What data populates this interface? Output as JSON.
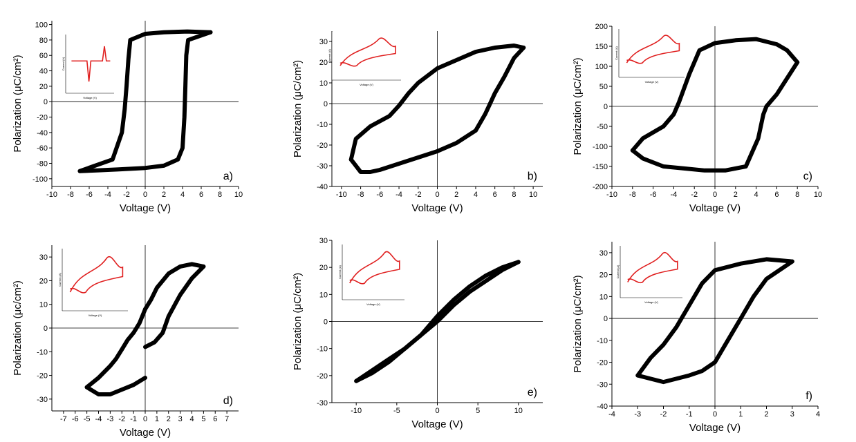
{
  "figure": {
    "background": "#ffffff",
    "loop_color": "#000000",
    "inset_color": "#e02020"
  },
  "chart_data": [
    {
      "id": "a",
      "type": "line",
      "panel_label": "a)",
      "xlabel": "Voltage (V)",
      "ylabel": "Polarization (μC/cm²)",
      "xlim": [
        -10,
        10
      ],
      "ylim": [
        -110,
        105
      ],
      "xticks": [
        -10,
        -8,
        -6,
        -4,
        -2,
        0,
        2,
        4,
        6,
        8,
        10
      ],
      "yticks": [
        -100,
        -80,
        -60,
        -40,
        -20,
        0,
        20,
        40,
        60,
        80,
        100
      ],
      "grid": false,
      "series": [
        {
          "x": [
            7,
            4.6,
            4.4,
            4.3,
            4.2,
            4.0,
            3.5,
            2,
            0,
            -3,
            -5,
            -7
          ],
          "y": [
            90,
            80,
            60,
            20,
            -20,
            -60,
            -75,
            -83,
            -86,
            -88,
            -89,
            -90
          ]
        },
        {
          "x": [
            -7,
            -3.5,
            -2.5,
            -2.2,
            -2.0,
            -1.8,
            -1.6,
            0,
            2,
            4.5,
            7
          ],
          "y": [
            -90,
            -75,
            -40,
            -10,
            20,
            55,
            80,
            88,
            90,
            91,
            90
          ]
        }
      ],
      "inset": {
        "type": "line",
        "ylabel": "Current (A)",
        "xlabel": "Voltage (V)"
      }
    },
    {
      "id": "b",
      "type": "line",
      "panel_label": "b)",
      "xlabel": "Voltage (V)",
      "ylabel": "Polarization (μC/cm²)",
      "xlim": [
        -11,
        11
      ],
      "ylim": [
        -40,
        35
      ],
      "xticks": [
        -10,
        -8,
        -6,
        -4,
        -2,
        0,
        2,
        4,
        6,
        8,
        10
      ],
      "yticks": [
        -40,
        -30,
        -20,
        -10,
        0,
        10,
        20,
        30
      ],
      "grid": false,
      "series": [
        {
          "x": [
            9,
            8,
            7,
            6,
            5.5,
            5,
            4,
            2,
            0,
            -2,
            -4,
            -6,
            -7,
            -8,
            -9
          ],
          "y": [
            27,
            22,
            13,
            5,
            0,
            -5,
            -13,
            -19,
            -23,
            -26,
            -29,
            -32,
            -33,
            -33,
            -27
          ]
        },
        {
          "x": [
            -9,
            -8.5,
            -7,
            -5,
            -4,
            -3,
            -2,
            0,
            2,
            4,
            6,
            8,
            9
          ],
          "y": [
            -27,
            -17,
            -11,
            -6,
            -1,
            5,
            10,
            17,
            21,
            25,
            27,
            28,
            27
          ]
        }
      ],
      "inset": {
        "type": "line",
        "ylabel": "Current (A)",
        "xlabel": "Voltage (V)"
      }
    },
    {
      "id": "c",
      "type": "line",
      "panel_label": "c)",
      "xlabel": "Voltage (V)",
      "ylabel": "Polarization (μC/cm²)",
      "xlim": [
        -10,
        10
      ],
      "ylim": [
        -200,
        200
      ],
      "xticks": [
        -10,
        -8,
        -6,
        -4,
        -2,
        0,
        2,
        4,
        6,
        8,
        10
      ],
      "yticks": [
        -200,
        -150,
        -100,
        -50,
        0,
        50,
        100,
        150,
        200
      ],
      "grid": false,
      "series": [
        {
          "x": [
            8,
            7,
            6,
            5,
            4.7,
            4.2,
            3,
            1,
            -1,
            -3,
            -5,
            -7,
            -8
          ],
          "y": [
            110,
            70,
            30,
            0,
            -20,
            -80,
            -150,
            -160,
            -160,
            -155,
            -150,
            -130,
            -110
          ]
        },
        {
          "x": [
            -8,
            -7,
            -5,
            -4,
            -3.5,
            -2.5,
            -1.5,
            0,
            2,
            4,
            6,
            7,
            8
          ],
          "y": [
            -110,
            -80,
            -50,
            -20,
            10,
            80,
            140,
            158,
            165,
            168,
            155,
            140,
            110
          ]
        }
      ],
      "inset": {
        "type": "line",
        "ylabel": "Current (A)",
        "xlabel": "Voltage (V)"
      }
    },
    {
      "id": "d",
      "type": "line",
      "panel_label": "d)",
      "xlabel": "Voltage (V)",
      "ylabel": "Polarization (μc/cm²)",
      "xlim": [
        -8,
        8
      ],
      "ylim": [
        -35,
        35
      ],
      "xticks": [
        -7,
        -6,
        -5,
        -4,
        -3,
        -2,
        -1,
        0,
        1,
        2,
        3,
        4,
        5,
        6,
        7
      ],
      "yticks": [
        -30,
        -20,
        -10,
        0,
        10,
        20,
        30
      ],
      "grid": false,
      "series": [
        {
          "x": [
            0,
            -0.5,
            -1,
            -1.5,
            -2,
            -2.5,
            -3,
            -4,
            -5
          ],
          "y": [
            8,
            2,
            -2,
            -5,
            -9,
            -13,
            -16,
            -21,
            -25
          ]
        },
        {
          "x": [
            -5,
            -4,
            -3,
            -2,
            -1,
            0
          ],
          "y": [
            -25,
            -28,
            -28,
            -26,
            -24,
            -21
          ]
        },
        {
          "x": [
            0,
            0.8,
            1.5,
            2,
            3,
            4,
            5
          ],
          "y": [
            -8,
            -6,
            -2,
            5,
            14,
            21,
            26
          ]
        },
        {
          "x": [
            5,
            4,
            3,
            2,
            1,
            0.5,
            0
          ],
          "y": [
            26,
            27,
            26,
            23,
            17,
            12,
            8
          ]
        }
      ],
      "inset": {
        "type": "line",
        "ylabel": "Current (A)",
        "xlabel": "Voltage (V)"
      }
    },
    {
      "id": "e",
      "type": "line",
      "panel_label": "e)",
      "xlabel": "Voltage (V)",
      "ylabel": "Polarization (μC/cm²)",
      "xlim": [
        -13,
        13
      ],
      "ylim": [
        -30,
        30
      ],
      "xticks": [
        -10,
        -5,
        0,
        5,
        10
      ],
      "yticks": [
        -30,
        -20,
        -10,
        0,
        10,
        20,
        30
      ],
      "grid": false,
      "series": [
        {
          "x": [
            10,
            8,
            6,
            4,
            2,
            0,
            -2,
            -4,
            -6,
            -8,
            -10
          ],
          "y": [
            22,
            19,
            15,
            11,
            6,
            0,
            -5,
            -10,
            -14,
            -18,
            -22
          ]
        },
        {
          "x": [
            -10,
            -8,
            -6,
            -4,
            -2,
            0,
            2,
            4,
            6,
            8,
            10
          ],
          "y": [
            -22,
            -19,
            -15,
            -10,
            -5,
            2,
            8,
            13,
            17,
            20,
            22
          ]
        }
      ],
      "inset": {
        "type": "line",
        "ylabel": "Current (A)",
        "xlabel": "Voltage (V)"
      }
    },
    {
      "id": "f",
      "type": "line",
      "panel_label": "f)",
      "xlabel": "Voltage (V)",
      "ylabel": "Polarization (μC/cm²)",
      "xlim": [
        -4,
        4
      ],
      "ylim": [
        -40,
        35
      ],
      "xticks": [
        -4,
        -3,
        -2,
        -1,
        0,
        1,
        2,
        3,
        4
      ],
      "yticks": [
        -40,
        -30,
        -20,
        -10,
        0,
        10,
        20,
        30
      ],
      "grid": false,
      "series": [
        {
          "x": [
            3,
            2,
            1.5,
            1,
            0.5,
            0,
            -0.5,
            -1,
            -2,
            -3
          ],
          "y": [
            26,
            18,
            10,
            0,
            -10,
            -20,
            -24,
            -26,
            -29,
            -26
          ]
        },
        {
          "x": [
            -3,
            -2.5,
            -2,
            -1.5,
            -1,
            -0.5,
            0,
            1,
            2,
            3
          ],
          "y": [
            -26,
            -18,
            -12,
            -4,
            6,
            16,
            22,
            25,
            27,
            26
          ]
        }
      ],
      "inset": {
        "type": "line",
        "ylabel": "Current (A)",
        "xlabel": "Voltage (V)"
      }
    }
  ]
}
